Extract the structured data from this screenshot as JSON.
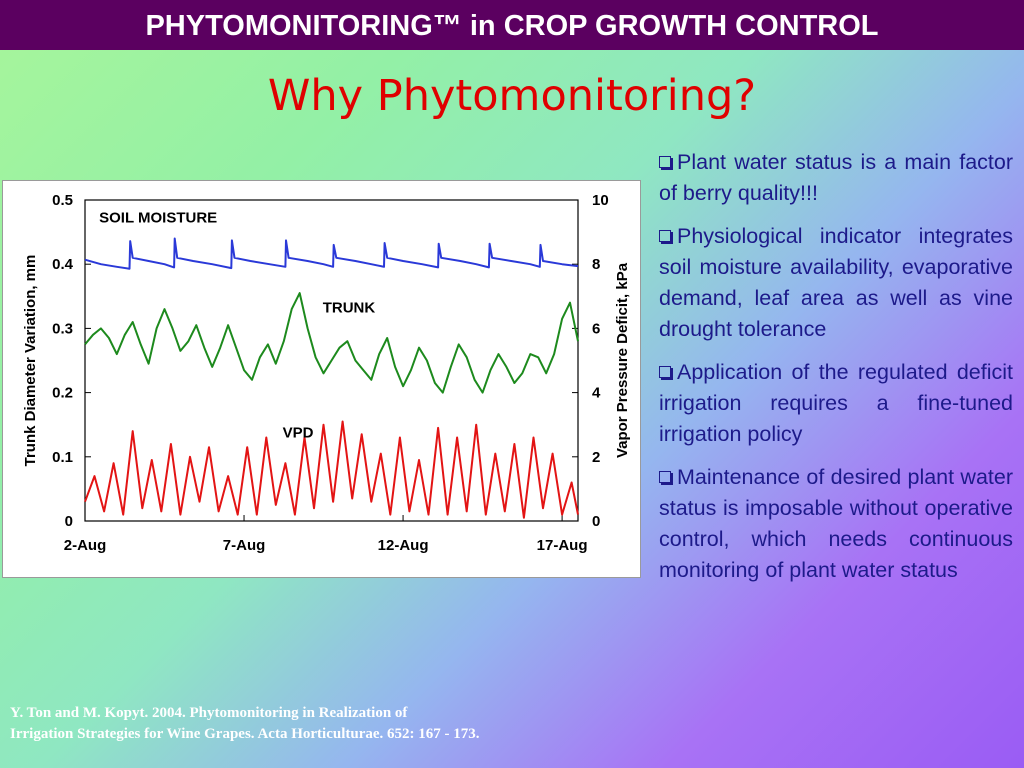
{
  "header": {
    "banner": "PHYTOMONITORING™ in CROP GROWTH CONTROL",
    "title": "Why Phytomonitoring?"
  },
  "colors": {
    "banner_bg": "#5b0060",
    "title": "#e00000",
    "bullet_text": "#1d1a8a",
    "soil_moisture": "#2a39d8",
    "trunk": "#1d8a1d",
    "vpd": "#e31414"
  },
  "bullets": [
    "Plant water status is a main factor of berry quality!!!",
    "Physiological indicator integrates soil moisture availability, evaporative demand, leaf area as well as vine drought tolerance",
    "Application of the regulated deficit irrigation requires a fine-tuned irrigation policy",
    "Maintenance of desired plant water status is imposable without operative control, which needs continuous monitoring of plant water status"
  ],
  "reference": {
    "line1": "Y. Ton and M. Kopyt. 2004. Phytomonitoring in Realization of",
    "line2": "Irrigation Strategies for Wine Grapes. Acta Horticulturae. 652: 167 - 173."
  },
  "chart_data": {
    "type": "line",
    "xlabel": "",
    "ylabel": "Trunk Diameter Variation, mm",
    "ylabel_right": "Vapor Pressure Deficit, kPa",
    "xlim": [
      2,
      17.5
    ],
    "ylim": [
      0,
      0.5
    ],
    "ylim_right": [
      0,
      10
    ],
    "x_ticks": [
      2,
      7,
      12,
      17
    ],
    "x_tick_labels": [
      "2-Aug",
      "7-Aug",
      "12-Aug",
      "17-Aug"
    ],
    "y_ticks": [
      0,
      0.1,
      0.2,
      0.3,
      0.4,
      0.5
    ],
    "y_tick_labels": [
      "0",
      "0.1",
      "0.2",
      "0.3",
      "0.4",
      "0.5"
    ],
    "y_right_ticks": [
      0,
      2,
      4,
      6,
      8,
      10
    ],
    "y_right_tick_labels": [
      "0",
      "2",
      "4",
      "6",
      "8",
      "10"
    ],
    "annotations": [
      {
        "text": "SOIL MOISTURE",
        "x": 4.3,
        "y": 0.465
      },
      {
        "text": "TRUNK",
        "x": 10.3,
        "y": 0.325
      },
      {
        "text": "VPD",
        "x": 8.7,
        "y": 0.13
      }
    ],
    "series": [
      {
        "label": "SOIL MOISTURE",
        "axis": "left",
        "x": [
          2.0,
          2.5,
          3.0,
          3.4,
          3.42,
          3.5,
          4.0,
          4.5,
          4.8,
          4.82,
          4.9,
          5.4,
          6.0,
          6.6,
          6.62,
          6.7,
          7.2,
          7.8,
          8.3,
          8.32,
          8.4,
          9.0,
          9.5,
          9.8,
          9.82,
          9.9,
          10.5,
          11.0,
          11.4,
          11.42,
          11.5,
          12.0,
          12.6,
          13.1,
          13.12,
          13.2,
          13.8,
          14.3,
          14.7,
          14.72,
          14.8,
          15.4,
          16.0,
          16.3,
          16.32,
          16.4,
          17.0,
          17.5
        ],
        "y": [
          0.407,
          0.4,
          0.396,
          0.393,
          0.436,
          0.41,
          0.405,
          0.4,
          0.395,
          0.44,
          0.41,
          0.405,
          0.4,
          0.394,
          0.437,
          0.41,
          0.405,
          0.4,
          0.396,
          0.437,
          0.41,
          0.405,
          0.4,
          0.396,
          0.43,
          0.41,
          0.405,
          0.4,
          0.396,
          0.433,
          0.41,
          0.405,
          0.4,
          0.395,
          0.432,
          0.41,
          0.405,
          0.4,
          0.395,
          0.432,
          0.41,
          0.405,
          0.4,
          0.396,
          0.43,
          0.405,
          0.4,
          0.397
        ]
      },
      {
        "label": "TRUNK",
        "axis": "left",
        "x": [
          2.0,
          2.25,
          2.5,
          2.75,
          3.0,
          3.25,
          3.5,
          3.75,
          4.0,
          4.25,
          4.5,
          4.75,
          5.0,
          5.25,
          5.5,
          5.75,
          6.0,
          6.25,
          6.5,
          6.75,
          7.0,
          7.25,
          7.5,
          7.75,
          8.0,
          8.25,
          8.5,
          8.75,
          9.0,
          9.25,
          9.5,
          9.75,
          10.0,
          10.25,
          10.5,
          10.75,
          11.0,
          11.25,
          11.5,
          11.75,
          12.0,
          12.25,
          12.5,
          12.75,
          13.0,
          13.25,
          13.5,
          13.75,
          14.0,
          14.25,
          14.5,
          14.75,
          15.0,
          15.25,
          15.5,
          15.75,
          16.0,
          16.25,
          16.5,
          16.75,
          17.0,
          17.25,
          17.5
        ],
        "y": [
          0.275,
          0.29,
          0.3,
          0.285,
          0.26,
          0.29,
          0.31,
          0.275,
          0.245,
          0.3,
          0.33,
          0.3,
          0.265,
          0.28,
          0.305,
          0.27,
          0.24,
          0.27,
          0.305,
          0.27,
          0.235,
          0.22,
          0.255,
          0.275,
          0.245,
          0.28,
          0.33,
          0.355,
          0.3,
          0.255,
          0.23,
          0.25,
          0.27,
          0.28,
          0.25,
          0.235,
          0.22,
          0.26,
          0.285,
          0.24,
          0.21,
          0.235,
          0.27,
          0.25,
          0.215,
          0.2,
          0.24,
          0.275,
          0.255,
          0.22,
          0.2,
          0.235,
          0.26,
          0.24,
          0.215,
          0.23,
          0.26,
          0.255,
          0.23,
          0.26,
          0.315,
          0.34,
          0.28
        ]
      },
      {
        "label": "VPD",
        "axis": "right",
        "x": [
          2.0,
          2.3,
          2.6,
          2.9,
          3.2,
          3.5,
          3.8,
          4.1,
          4.4,
          4.7,
          5.0,
          5.3,
          5.6,
          5.9,
          6.2,
          6.5,
          6.8,
          7.1,
          7.4,
          7.7,
          8.0,
          8.3,
          8.6,
          8.9,
          9.2,
          9.5,
          9.8,
          10.1,
          10.4,
          10.7,
          11.0,
          11.3,
          11.6,
          11.9,
          12.2,
          12.5,
          12.8,
          13.1,
          13.4,
          13.7,
          14.0,
          14.3,
          14.6,
          14.9,
          15.2,
          15.5,
          15.8,
          16.1,
          16.4,
          16.7,
          17.0,
          17.3,
          17.5
        ],
        "y": [
          0.6,
          1.4,
          0.3,
          1.8,
          0.2,
          2.8,
          0.4,
          1.9,
          0.3,
          2.4,
          0.2,
          2.0,
          0.6,
          2.3,
          0.3,
          1.4,
          0.2,
          2.3,
          0.2,
          2.6,
          0.5,
          1.8,
          0.2,
          2.6,
          0.4,
          3.0,
          0.6,
          3.1,
          0.7,
          2.7,
          0.6,
          2.1,
          0.2,
          2.6,
          0.3,
          1.9,
          0.2,
          2.9,
          0.2,
          2.6,
          0.3,
          3.0,
          0.2,
          2.1,
          0.3,
          2.4,
          0.1,
          2.6,
          0.4,
          2.1,
          0.2,
          1.2,
          0.2
        ]
      }
    ]
  }
}
